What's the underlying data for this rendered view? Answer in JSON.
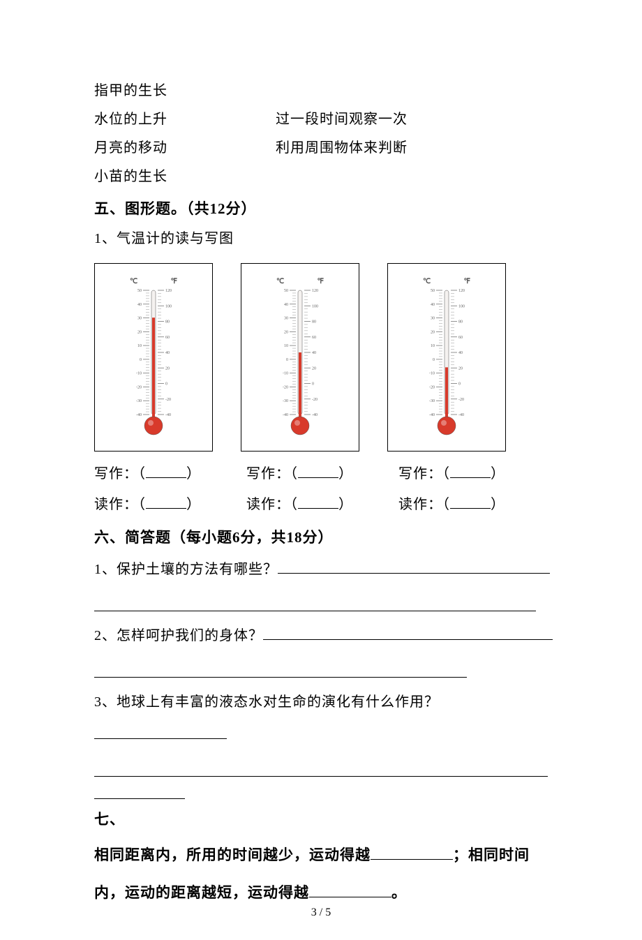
{
  "matching": {
    "left": [
      "指甲的生长",
      "水位的上升",
      "月亮的移动",
      "小苗的生长"
    ],
    "right": [
      "",
      "过一段时间观察一次",
      "利用周围物体来判断",
      ""
    ]
  },
  "section5": {
    "heading": "五、图形题。（共12分）",
    "q1": "1、气温计的读与写图",
    "labels_c": "℃",
    "labels_f": "℉",
    "scale_c": {
      "min": -40,
      "max": 50,
      "step": 10
    },
    "scale_f": {
      "min": -40,
      "max": 120,
      "step": 20
    },
    "thermometers": [
      {
        "fill_ratio": 0.78,
        "liquid_color": "#d83a2b",
        "tube_bg": "#f5f2f0",
        "border_color": "#555555"
      },
      {
        "fill_ratio": 0.5,
        "liquid_color": "#d83a2b",
        "tube_bg": "#f5f2f0",
        "border_color": "#555555"
      },
      {
        "fill_ratio": 0.38,
        "liquid_color": "#d83a2b",
        "tube_bg": "#f5f2f0",
        "border_color": "#555555"
      }
    ],
    "write_label": "写作：",
    "read_label": "读作："
  },
  "section6": {
    "heading": "六、简答题（每小题6分，共18分）",
    "q1": "1、保护土壤的方法有哪些？",
    "q2": "2、怎样呵护我们的身体？",
    "q3": "3、地球上有丰富的液态水对生命的演化有什么作用？"
  },
  "section7": {
    "heading": "七、",
    "text_part1": "相同距离内，所用的时间越少，运动得越",
    "text_part2": "；相同时间内，运动的距离越短，运动得越",
    "text_part3": "。"
  },
  "page_number": "3 / 5",
  "style": {
    "blank_width_short": 58,
    "blank_width_long": 118,
    "underline_full": 650,
    "underline_partial": 130
  }
}
